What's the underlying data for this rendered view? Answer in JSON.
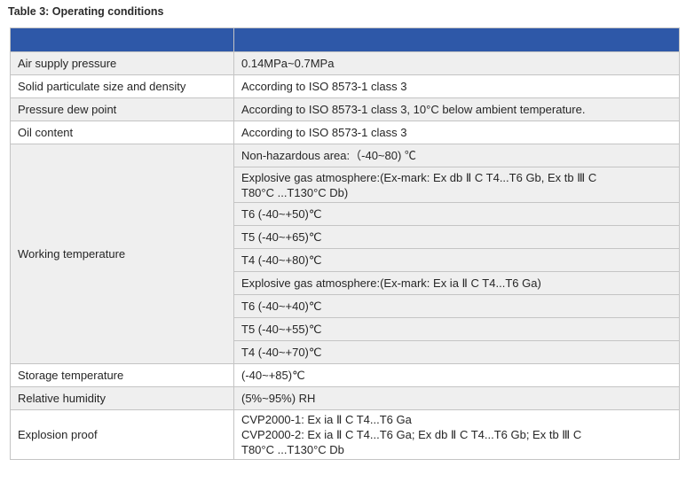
{
  "caption": "Table 3: Operating conditions",
  "header": [
    "",
    ""
  ],
  "rows": [
    {
      "param": "Air supply pressure",
      "value": "0.14MPa~0.7MPa"
    },
    {
      "param": "Solid particulate size and density",
      "value": "According to ISO 8573-1 class 3"
    },
    {
      "param": "Pressure dew point",
      "value": "According to ISO 8573-1 class 3, 10°C below ambient temperature."
    },
    {
      "param": "Oil content",
      "value": "According to ISO 8573-1 class 3"
    },
    {
      "param": "Working temperature",
      "values": [
        "Non-hazardous area:（-40~80) ℃",
        "Explosive gas atmosphere:(Ex-mark: Ex db Ⅱ C T4...T6 Gb, Ex tb Ⅲ C",
        "T80°C ...T130°C Db)",
        "T6 (-40~+50)℃",
        "T5 (-40~+65)℃",
        "T4 (-40~+80)℃",
        "Explosive gas atmosphere:(Ex-mark: Ex ia Ⅱ C T4...T6 Ga)",
        "T6 (-40~+40)℃",
        "T5 (-40~+55)℃",
        "T4 (-40~+70)℃"
      ]
    },
    {
      "param": "Storage temperature",
      "value": "(-40~+85)℃"
    },
    {
      "param": "Relative humidity",
      "value": "(5%~95%) RH"
    },
    {
      "param": "Explosion proof",
      "values": [
        "CVP2000-1: Ex ia Ⅱ C T4...T6 Ga",
        "CVP2000-2: Ex ia Ⅱ C T4...T6 Ga; Ex db Ⅱ C T4...T6 Gb;  Ex tb Ⅲ C",
        "T80°C ...T130°C Db"
      ]
    }
  ],
  "colors": {
    "header": "#2e58a8",
    "row_shade": "#efefef",
    "border": "#c4c4c4"
  }
}
